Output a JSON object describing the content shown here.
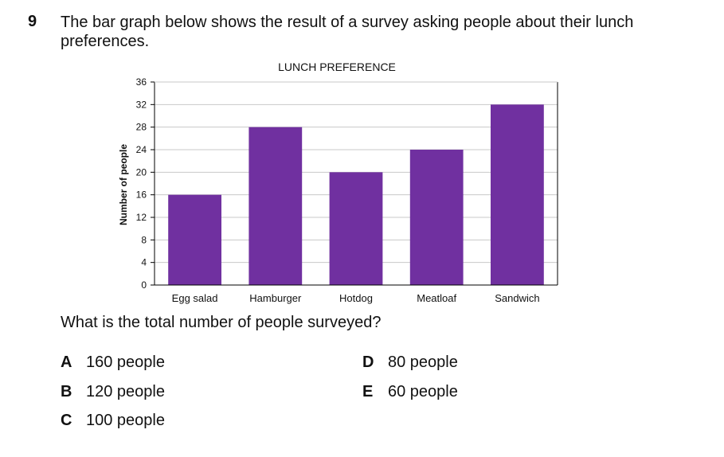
{
  "question": {
    "number": "9",
    "line1": "The bar graph below shows the result of a survey asking people about their lunch",
    "line2": "preferences.",
    "ask": "What is the total number of people surveyed?"
  },
  "options": [
    {
      "letter": "A",
      "text": "160 people"
    },
    {
      "letter": "B",
      "text": "120 people"
    },
    {
      "letter": "C",
      "text": "100 people"
    },
    {
      "letter": "D",
      "text": "80 people"
    },
    {
      "letter": "E",
      "text": "60 people"
    }
  ],
  "colors": {
    "bar": "#7030A0",
    "grid": "#c8c8c8",
    "axis": "#000000"
  },
  "chart_data": {
    "type": "bar",
    "title": "LUNCH PREFERENCE",
    "xlabel": "",
    "ylabel": "Number of people",
    "categories": [
      "Egg salad",
      "Hamburger",
      "Hotdog",
      "Meatloaf",
      "Sandwich"
    ],
    "values": [
      16,
      28,
      20,
      24,
      32
    ],
    "ylim": [
      0,
      36
    ],
    "yticks": [
      0,
      4,
      8,
      12,
      16,
      20,
      24,
      28,
      32,
      36
    ],
    "grid": true,
    "legend": "none"
  }
}
